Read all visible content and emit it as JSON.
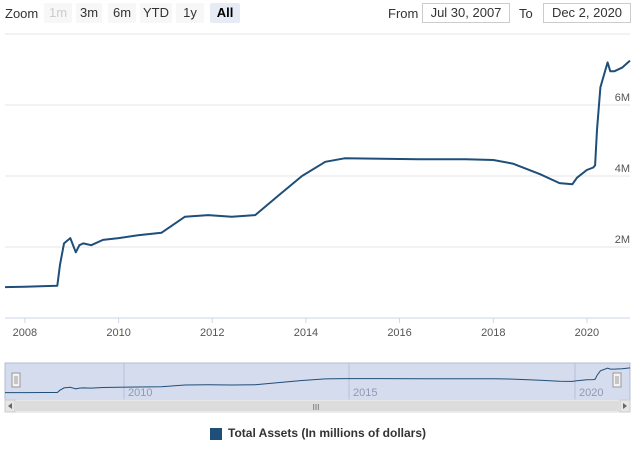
{
  "toolbar": {
    "zoom_label": "Zoom",
    "zoom_buttons": [
      {
        "label": "1m",
        "state": "disabled"
      },
      {
        "label": "3m",
        "state": "normal"
      },
      {
        "label": "6m",
        "state": "normal"
      },
      {
        "label": "YTD",
        "state": "normal"
      },
      {
        "label": "1y",
        "state": "normal"
      },
      {
        "label": "All",
        "state": "selected"
      }
    ],
    "from_label": "From",
    "from_value": "Jul 30, 2007",
    "to_label": "To",
    "to_value": "Dec 2, 2020"
  },
  "navigator": {
    "year_labels": [
      "2010",
      "2015",
      "2020"
    ],
    "scrollbar_grip": "III"
  },
  "legend": {
    "label": "Total Assets (In millions of dollars)"
  },
  "colors": {
    "series": "#1f4e79",
    "navigator_mask": "#d4dcee",
    "grid": "#e6e6e6"
  },
  "chart_data": {
    "type": "line",
    "x_type": "date",
    "xlim": [
      "2007-07-30",
      "2020-12-02"
    ],
    "ylim": [
      0,
      8000000
    ],
    "x_ticks": [
      "2008",
      "2010",
      "2012",
      "2014",
      "2016",
      "2018",
      "2020"
    ],
    "y_ticks": [
      {
        "value": 2000000,
        "label": "2M"
      },
      {
        "value": 4000000,
        "label": "4M"
      },
      {
        "value": 6000000,
        "label": "6M"
      }
    ],
    "grid": true,
    "legend_position": "bottom",
    "series": [
      {
        "name": "Total Assets (In millions of dollars)",
        "x": [
          "2007-07-30",
          "2008-01-01",
          "2008-06-01",
          "2008-09-10",
          "2008-10-01",
          "2008-11-01",
          "2008-12-20",
          "2009-02-01",
          "2009-03-01",
          "2009-04-01",
          "2009-06-01",
          "2009-09-01",
          "2010-01-01",
          "2010-06-01",
          "2010-12-01",
          "2011-06-01",
          "2011-12-01",
          "2012-06-01",
          "2012-12-01",
          "2013-06-01",
          "2013-12-01",
          "2014-06-01",
          "2014-10-29",
          "2015-06-01",
          "2016-06-01",
          "2017-06-01",
          "2018-01-01",
          "2018-06-01",
          "2019-01-01",
          "2019-06-01",
          "2019-09-10",
          "2019-10-15",
          "2019-12-31",
          "2020-02-20",
          "2020-03-05",
          "2020-03-20",
          "2020-04-15",
          "2020-06-10",
          "2020-07-01",
          "2020-08-01",
          "2020-10-01",
          "2020-12-02"
        ],
        "y": [
          870000,
          880000,
          900000,
          910000,
          1500000,
          2100000,
          2250000,
          1850000,
          2050000,
          2100000,
          2050000,
          2200000,
          2250000,
          2330000,
          2400000,
          2850000,
          2900000,
          2850000,
          2900000,
          3450000,
          4000000,
          4400000,
          4500000,
          4490000,
          4470000,
          4470000,
          4450000,
          4350000,
          4050000,
          3800000,
          3770000,
          3950000,
          4170000,
          4240000,
          4300000,
          5300000,
          6500000,
          7200000,
          6950000,
          6950000,
          7050000,
          7250000
        ]
      }
    ]
  }
}
